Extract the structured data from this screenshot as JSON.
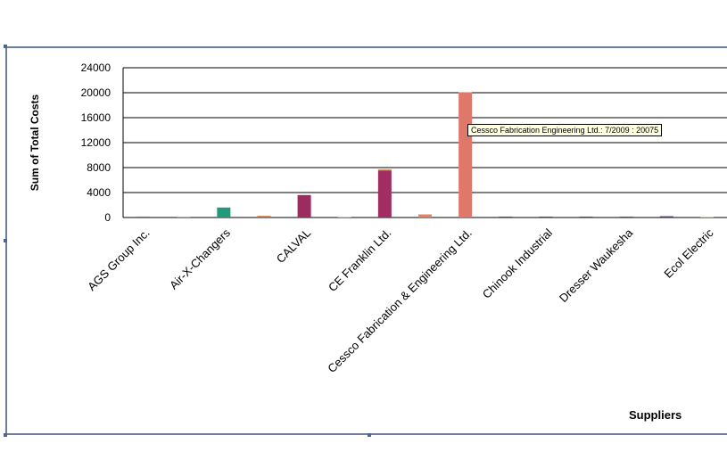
{
  "chart_data": {
    "type": "bar",
    "xlabel": "Suppliers",
    "ylabel": "Sum of Total Costs",
    "ylim": [
      0,
      24000
    ],
    "yticks": [
      0,
      4000,
      8000,
      12000,
      16000,
      20000,
      24000
    ],
    "grid": true,
    "categories": [
      "",
      "",
      "",
      "",
      "",
      "",
      "",
      "",
      "",
      "",
      "",
      "",
      "",
      "",
      ""
    ],
    "tick_labels": [
      "AGS Group  Inc.",
      "Air-X-Changers",
      "CALVAL",
      "CE Franklin Ltd.",
      "Cessco Fabrication & Engineering Ltd.",
      "Chinook Industrial",
      "Dresser Waukesha",
      "Ecol Electric"
    ],
    "tick_label_positions": [
      0,
      2,
      4,
      6,
      8,
      10,
      12,
      14
    ],
    "bars": [
      {
        "value": 150,
        "color": "#6b6fa8"
      },
      {
        "value": 150,
        "color": "#e8a060"
      },
      {
        "value": 1600,
        "color": "#1f9a7a"
      },
      {
        "value": 250,
        "color": "#d9682e"
      },
      {
        "value": 3600,
        "color": "#9c2c5e"
      },
      {
        "value": 150,
        "color": "#f0d040"
      },
      {
        "value": 7500,
        "color": "#a12d62",
        "stack_top": {
          "value": 200,
          "color": "#c98a60"
        }
      },
      {
        "value": 500,
        "color": "#e88060"
      },
      {
        "value": 20075,
        "color": "#e0786a"
      },
      {
        "value": 150,
        "color": "#3f6b2f"
      },
      {
        "value": 150,
        "color": "#9c2c5e"
      },
      {
        "value": 150,
        "color": "#9c2c5e"
      },
      {
        "value": 150,
        "color": "#a83060"
      },
      {
        "value": 200,
        "color": "#5a2a8a"
      },
      {
        "value": 150,
        "color": "#f0d040"
      }
    ],
    "tooltip": "Cessco Fabrication  Engineering Ltd.: 7/2009 : 20075"
  }
}
